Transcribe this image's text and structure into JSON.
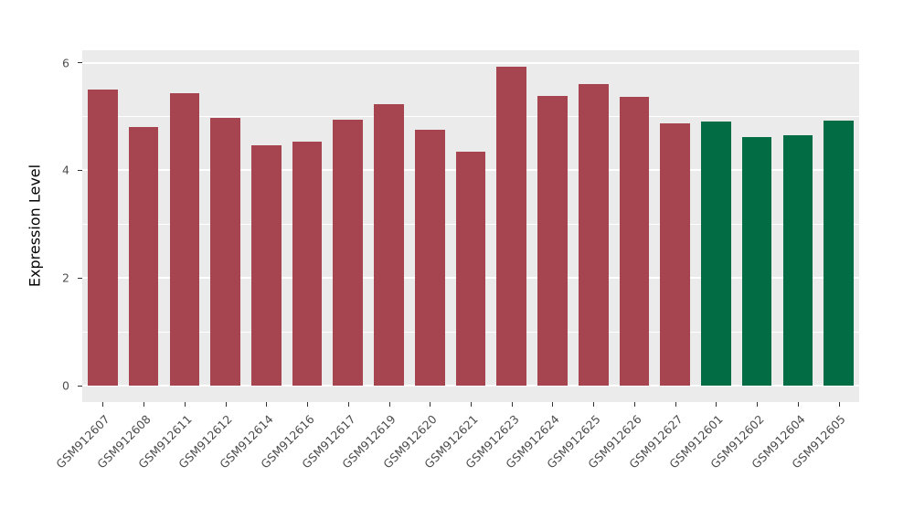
{
  "chart_data": {
    "type": "bar",
    "title": "",
    "xlabel": "",
    "ylabel": "Expression Level",
    "categories": [
      "GSM912607",
      "GSM912608",
      "GSM912611",
      "GSM912612",
      "GSM912614",
      "GSM912616",
      "GSM912617",
      "GSM912619",
      "GSM912620",
      "GSM912621",
      "GSM912623",
      "GSM912624",
      "GSM912625",
      "GSM912626",
      "GSM912627",
      "GSM912601",
      "GSM912602",
      "GSM912604",
      "GSM912605"
    ],
    "values": [
      5.5,
      4.8,
      5.43,
      4.98,
      4.47,
      4.54,
      4.94,
      5.23,
      4.76,
      4.34,
      5.93,
      5.38,
      5.6,
      5.36,
      4.88,
      4.91,
      4.62,
      4.66,
      4.93
    ],
    "groups": [
      "group1",
      "group1",
      "group1",
      "group1",
      "group1",
      "group1",
      "group1",
      "group1",
      "group1",
      "group1",
      "group1",
      "group1",
      "group1",
      "group1",
      "group1",
      "group2",
      "group2",
      "group2",
      "group2"
    ],
    "group_colors": {
      "group1": "#A6454F",
      "group2": "#026C45"
    },
    "yticks": [
      0,
      2,
      4,
      6
    ],
    "yticks_minor": [
      1,
      3,
      5
    ],
    "ylim": [
      0,
      6.23
    ],
    "panel_range": [
      -0.3,
      6.23
    ],
    "panel_bg": "#EBEBEB",
    "grid_color": "#FFFFFF",
    "legend": "none",
    "grid": "on"
  }
}
